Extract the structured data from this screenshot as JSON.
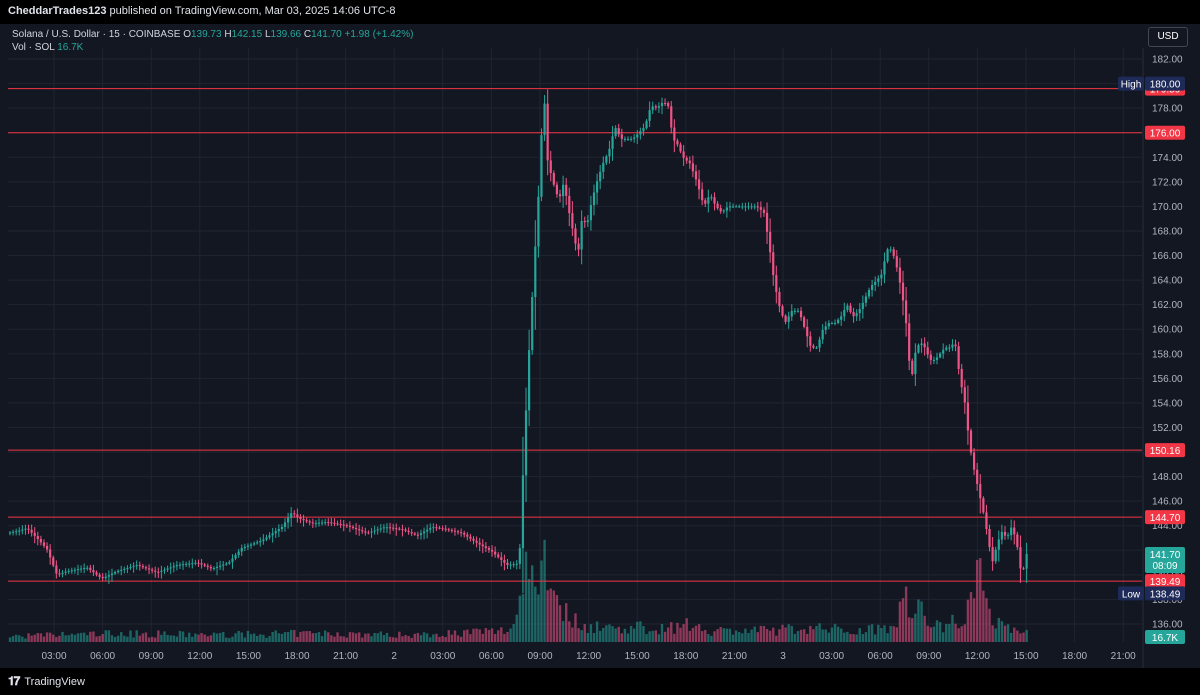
{
  "header": {
    "author": "CheddarTrades123",
    "published_text": "published on TradingView.com, Mar 03, 2025 14:06 UTC-8"
  },
  "legend": {
    "symbol": "Solana / U.S. Dollar · 15 · COINBASE",
    "o_label": "O",
    "o": "139.73",
    "h_label": "H",
    "h": "142.15",
    "l_label": "L",
    "l": "139.66",
    "c_label": "C",
    "c": "141.70",
    "change": "+1.98 (+1.42%)",
    "vol_label": "Vol · SOL",
    "vol_value": "16.7K"
  },
  "currency_button": "USD",
  "brand": "TradingView",
  "colors": {
    "up": "#26a69a",
    "down": "#ef5486",
    "level_line": "#f23645",
    "background": "#131722",
    "grid": "#1f2430"
  },
  "chart_data": {
    "type": "candlestick",
    "symbol": "Solana / U.S. Dollar",
    "interval": "15",
    "exchange": "COINBASE",
    "ylim": [
      135,
      183
    ],
    "price_ticks": [
      "182.00",
      "180.00",
      "178.00",
      "176.00",
      "174.00",
      "172.00",
      "170.00",
      "168.00",
      "166.00",
      "164.00",
      "162.00",
      "160.00",
      "158.00",
      "156.00",
      "154.00",
      "152.00",
      "150.00",
      "148.00",
      "146.00",
      "144.00",
      "142.00",
      "140.00",
      "138.00",
      "136.00"
    ],
    "time_ticks": [
      "03:00",
      "06:00",
      "09:00",
      "12:00",
      "15:00",
      "18:00",
      "21:00",
      "2",
      "03:00",
      "06:00",
      "09:00",
      "12:00",
      "15:00",
      "18:00",
      "21:00",
      "3",
      "03:00",
      "06:00",
      "09:00",
      "12:00",
      "15:00",
      "18:00",
      "21:00"
    ],
    "horizontal_levels": [
      {
        "value": 179.59,
        "label": "179.59"
      },
      {
        "value": 176.0,
        "label": "176.00"
      },
      {
        "value": 150.16,
        "label": "150.16"
      },
      {
        "value": 144.7,
        "label": "144.70"
      },
      {
        "value": 139.49,
        "label": "139.49"
      }
    ],
    "high_marker": {
      "label": "High",
      "value": "180.00"
    },
    "low_marker": {
      "label": "Low",
      "value": "138.49"
    },
    "last_price": {
      "value": "141.70",
      "countdown": "08:09"
    },
    "last_volume": "16.7K",
    "path": [
      [
        0,
        143.4
      ],
      [
        12,
        143.6
      ],
      [
        20,
        143.8
      ],
      [
        30,
        143.0
      ],
      [
        40,
        142.1
      ],
      [
        50,
        140.0
      ],
      [
        60,
        140.3
      ],
      [
        80,
        140.6
      ],
      [
        95,
        139.7
      ],
      [
        110,
        140.3
      ],
      [
        130,
        140.8
      ],
      [
        150,
        140.2
      ],
      [
        170,
        140.8
      ],
      [
        190,
        141.0
      ],
      [
        205,
        140.5
      ],
      [
        222,
        141.0
      ],
      [
        235,
        142.2
      ],
      [
        255,
        142.8
      ],
      [
        275,
        143.9
      ],
      [
        285,
        145.1
      ],
      [
        292,
        144.6
      ],
      [
        305,
        144.2
      ],
      [
        320,
        144.3
      ],
      [
        340,
        144.0
      ],
      [
        360,
        143.4
      ],
      [
        378,
        143.9
      ],
      [
        395,
        143.7
      ],
      [
        410,
        143.2
      ],
      [
        425,
        143.9
      ],
      [
        440,
        143.7
      ],
      [
        455,
        143.4
      ],
      [
        470,
        142.6
      ],
      [
        485,
        141.9
      ],
      [
        500,
        140.8
      ],
      [
        510,
        140.9
      ],
      [
        513,
        142.2
      ],
      [
        517,
        150.0
      ],
      [
        522,
        158.0
      ],
      [
        527,
        165.0
      ],
      [
        531,
        170.0
      ],
      [
        535,
        176.5
      ],
      [
        537,
        179.6
      ],
      [
        540,
        174.0
      ],
      [
        546,
        172.0
      ],
      [
        552,
        170.5
      ],
      [
        557,
        172.0
      ],
      [
        561,
        170.0
      ],
      [
        566,
        168.0
      ],
      [
        571,
        166.0
      ],
      [
        575,
        169.0
      ],
      [
        580,
        168.5
      ],
      [
        585,
        170.5
      ],
      [
        590,
        172.0
      ],
      [
        596,
        173.5
      ],
      [
        602,
        174.5
      ],
      [
        608,
        176.5
      ],
      [
        614,
        175.5
      ],
      [
        620,
        175.5
      ],
      [
        626,
        175.5
      ],
      [
        632,
        176.0
      ],
      [
        638,
        176.5
      ],
      [
        644,
        178.2
      ],
      [
        650,
        178.0
      ],
      [
        656,
        178.5
      ],
      [
        661,
        178.3
      ],
      [
        666,
        175.5
      ],
      [
        671,
        175.0
      ],
      [
        676,
        174.0
      ],
      [
        683,
        173.5
      ],
      [
        690,
        172.0
      ],
      [
        697,
        170.0
      ],
      [
        703,
        171.0
      ],
      [
        709,
        170.0
      ],
      [
        715,
        169.5
      ],
      [
        721,
        170.0
      ],
      [
        730,
        170.0
      ],
      [
        740,
        170.0
      ],
      [
        750,
        170.0
      ],
      [
        757,
        169.5
      ],
      [
        762,
        167.0
      ],
      [
        767,
        164.0
      ],
      [
        772,
        162.0
      ],
      [
        778,
        160.5
      ],
      [
        785,
        161.5
      ],
      [
        792,
        161.5
      ],
      [
        798,
        160.0
      ],
      [
        804,
        158.5
      ],
      [
        810,
        158.5
      ],
      [
        816,
        160.0
      ],
      [
        822,
        160.5
      ],
      [
        828,
        160.5
      ],
      [
        834,
        161.0
      ],
      [
        840,
        162.0
      ],
      [
        846,
        161.0
      ],
      [
        852,
        161.5
      ],
      [
        858,
        162.5
      ],
      [
        864,
        163.5
      ],
      [
        870,
        164.0
      ],
      [
        875,
        164.5
      ],
      [
        880,
        166.5
      ],
      [
        885,
        166.5
      ],
      [
        890,
        165.0
      ],
      [
        895,
        163.0
      ],
      [
        900,
        160.0
      ],
      [
        904,
        155.5
      ],
      [
        908,
        158.0
      ],
      [
        913,
        159.0
      ],
      [
        918,
        158.5
      ],
      [
        923,
        157.5
      ],
      [
        928,
        157.5
      ],
      [
        933,
        158.0
      ],
      [
        938,
        158.5
      ],
      [
        943,
        158.5
      ],
      [
        948,
        159.0
      ],
      [
        953,
        156.0
      ],
      [
        958,
        154.0
      ],
      [
        962,
        151.0
      ],
      [
        966,
        149.0
      ],
      [
        970,
        147.5
      ],
      [
        974,
        146.0
      ],
      [
        978,
        144.5
      ],
      [
        982,
        142.5
      ],
      [
        986,
        141.0
      ],
      [
        990,
        142.5
      ],
      [
        995,
        143.5
      ],
      [
        1000,
        143.0
      ],
      [
        1005,
        144.0
      ],
      [
        1010,
        142.5
      ],
      [
        1015,
        139.7
      ],
      [
        1019,
        141.7
      ]
    ],
    "volume_profile": [
      [
        0,
        0.02
      ],
      [
        100,
        0.03
      ],
      [
        200,
        0.025
      ],
      [
        300,
        0.03
      ],
      [
        400,
        0.025
      ],
      [
        500,
        0.04
      ],
      [
        512,
        0.18
      ],
      [
        518,
        0.33
      ],
      [
        524,
        0.2
      ],
      [
        530,
        0.28
      ],
      [
        536,
        0.33
      ],
      [
        540,
        0.24
      ],
      [
        548,
        0.14
      ],
      [
        556,
        0.1
      ],
      [
        570,
        0.06
      ],
      [
        600,
        0.05
      ],
      [
        650,
        0.05
      ],
      [
        690,
        0.06
      ],
      [
        700,
        0.04
      ],
      [
        760,
        0.04
      ],
      [
        800,
        0.05
      ],
      [
        850,
        0.04
      ],
      [
        880,
        0.06
      ],
      [
        900,
        0.16
      ],
      [
        910,
        0.12
      ],
      [
        920,
        0.05
      ],
      [
        950,
        0.08
      ],
      [
        960,
        0.15
      ],
      [
        970,
        0.22
      ],
      [
        980,
        0.1
      ],
      [
        990,
        0.07
      ],
      [
        1000,
        0.05
      ],
      [
        1019,
        0.03
      ]
    ]
  }
}
